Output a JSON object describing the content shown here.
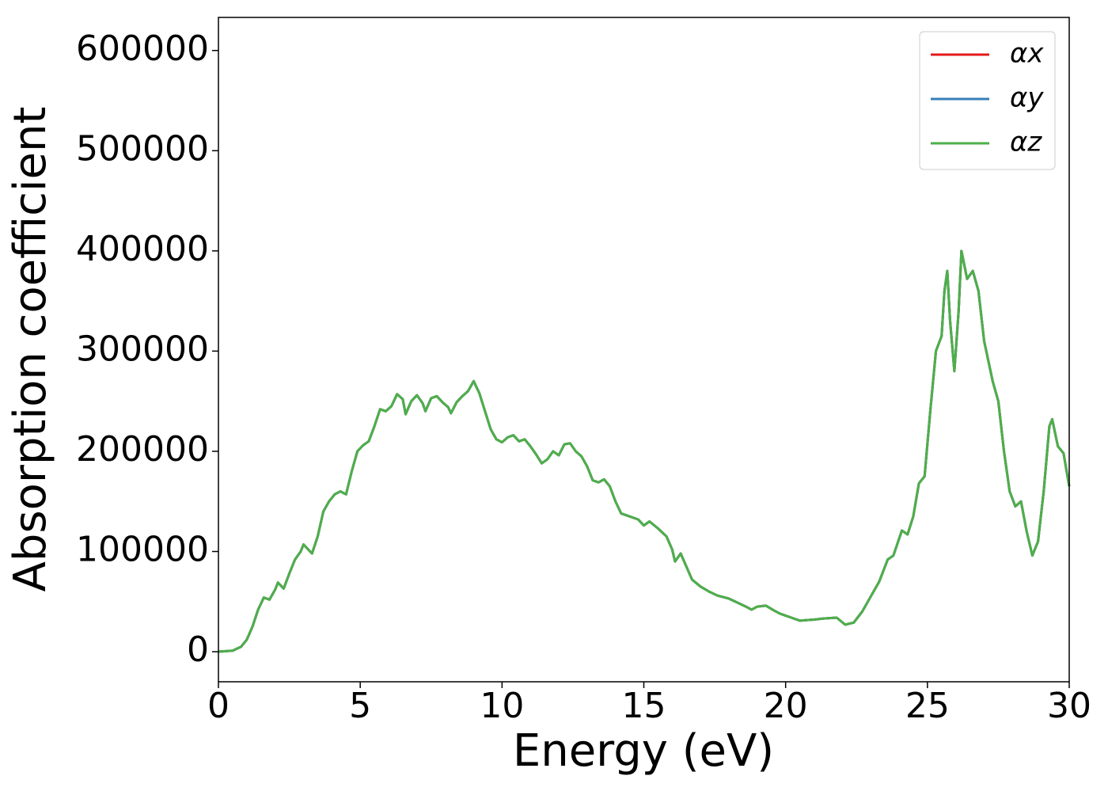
{
  "chart_data": {
    "type": "line",
    "xlabel": "Energy (eV)",
    "ylabel": "Absorption coefficient",
    "x": [
      0,
      0.5,
      0.8,
      1.0,
      1.2,
      1.4,
      1.6,
      1.8,
      2.0,
      2.1,
      2.3,
      2.5,
      2.7,
      2.9,
      3.0,
      3.1,
      3.3,
      3.5,
      3.7,
      3.9,
      4.1,
      4.3,
      4.5,
      4.7,
      4.9,
      5.1,
      5.3,
      5.5,
      5.7,
      5.9,
      6.1,
      6.3,
      6.5,
      6.6,
      6.8,
      7.0,
      7.2,
      7.3,
      7.5,
      7.7,
      7.9,
      8.1,
      8.2,
      8.4,
      8.6,
      8.8,
      9.0,
      9.2,
      9.4,
      9.6,
      9.8,
      10.0,
      10.2,
      10.4,
      10.6,
      10.8,
      11.0,
      11.2,
      11.4,
      11.6,
      11.8,
      12.0,
      12.2,
      12.4,
      12.6,
      12.8,
      13.0,
      13.2,
      13.4,
      13.6,
      13.8,
      14.0,
      14.2,
      14.5,
      14.8,
      15.0,
      15.2,
      15.5,
      15.8,
      16.0,
      16.1,
      16.3,
      16.5,
      16.7,
      17.0,
      17.3,
      17.6,
      18.0,
      18.3,
      18.6,
      18.8,
      19.0,
      19.3,
      19.6,
      19.8,
      20.2,
      20.5,
      21.0,
      21.3,
      21.8,
      22.1,
      22.4,
      22.7,
      23.0,
      23.3,
      23.6,
      23.8,
      24.1,
      24.3,
      24.5,
      24.7,
      24.9,
      25.1,
      25.3,
      25.5,
      25.6,
      25.7,
      25.8,
      25.95,
      26.1,
      26.2,
      26.4,
      26.6,
      26.8,
      27.0,
      27.3,
      27.5,
      27.7,
      27.9,
      28.1,
      28.3,
      28.5,
      28.7,
      28.9,
      29.1,
      29.3,
      29.4,
      29.6,
      29.8,
      30.0
    ],
    "series": [
      {
        "name": "αx",
        "color": "#e41a1c",
        "values": [
          0,
          1000,
          5000,
          12000,
          25000,
          42000,
          54000,
          52000,
          62000,
          69000,
          63000,
          78000,
          92000,
          100000,
          107000,
          104000,
          98000,
          115000,
          140000,
          150000,
          157000,
          160000,
          157000,
          180000,
          200000,
          206000,
          210000,
          225000,
          242000,
          240000,
          245000,
          257000,
          252000,
          237000,
          250000,
          256000,
          248000,
          240000,
          253000,
          255000,
          249000,
          244000,
          238000,
          249000,
          255000,
          260000,
          270000,
          258000,
          240000,
          222000,
          212000,
          209000,
          214000,
          216000,
          210000,
          212000,
          205000,
          197000,
          188000,
          192000,
          200000,
          196000,
          207000,
          208000,
          200000,
          195000,
          185000,
          171000,
          169000,
          172000,
          165000,
          150000,
          138000,
          135000,
          132000,
          126000,
          130000,
          123000,
          115000,
          102000,
          90000,
          98000,
          85000,
          72000,
          65000,
          60000,
          56000,
          53000,
          49000,
          45000,
          42000,
          45000,
          46000,
          41000,
          38000,
          34000,
          31000,
          32000,
          33000,
          34000,
          27000,
          29000,
          40000,
          55000,
          70000,
          92000,
          96000,
          121000,
          117000,
          135000,
          168000,
          175000,
          240000,
          300000,
          315000,
          360000,
          380000,
          330000,
          280000,
          340000,
          400000,
          372000,
          380000,
          360000,
          310000,
          270000,
          250000,
          200000,
          160000,
          145000,
          150000,
          120000,
          96000,
          110000,
          160000,
          225000,
          232000,
          205000,
          198000,
          165000
        ]
      },
      {
        "name": "αy",
        "color": "#377eb8",
        "values": [
          0,
          1000,
          5000,
          12000,
          25000,
          42000,
          54000,
          52000,
          62000,
          69000,
          63000,
          78000,
          92000,
          100000,
          107000,
          104000,
          98000,
          115000,
          140000,
          150000,
          157000,
          160000,
          157000,
          180000,
          200000,
          206000,
          210000,
          225000,
          242000,
          240000,
          245000,
          257000,
          252000,
          237000,
          250000,
          256000,
          248000,
          240000,
          253000,
          255000,
          249000,
          244000,
          238000,
          249000,
          255000,
          260000,
          270000,
          258000,
          240000,
          222000,
          212000,
          209000,
          214000,
          216000,
          210000,
          212000,
          205000,
          197000,
          188000,
          192000,
          200000,
          196000,
          207000,
          208000,
          200000,
          195000,
          185000,
          171000,
          169000,
          172000,
          165000,
          150000,
          138000,
          135000,
          132000,
          126000,
          130000,
          123000,
          115000,
          102000,
          90000,
          98000,
          85000,
          72000,
          65000,
          60000,
          56000,
          53000,
          49000,
          45000,
          42000,
          45000,
          46000,
          41000,
          38000,
          34000,
          31000,
          32000,
          33000,
          34000,
          27000,
          29000,
          40000,
          55000,
          70000,
          92000,
          96000,
          121000,
          117000,
          135000,
          168000,
          175000,
          240000,
          300000,
          315000,
          360000,
          380000,
          330000,
          280000,
          340000,
          400000,
          372000,
          380000,
          360000,
          310000,
          270000,
          250000,
          200000,
          160000,
          145000,
          150000,
          120000,
          96000,
          110000,
          160000,
          225000,
          232000,
          205000,
          198000,
          165000
        ]
      },
      {
        "name": "αz",
        "color": "#4daf4a",
        "values": [
          0,
          1000,
          5000,
          12000,
          25000,
          42000,
          54000,
          52000,
          62000,
          69000,
          63000,
          78000,
          92000,
          100000,
          107000,
          104000,
          98000,
          115000,
          140000,
          150000,
          157000,
          160000,
          157000,
          180000,
          200000,
          206000,
          210000,
          225000,
          242000,
          240000,
          245000,
          257000,
          252000,
          237000,
          250000,
          256000,
          248000,
          240000,
          253000,
          255000,
          249000,
          244000,
          238000,
          249000,
          255000,
          260000,
          270000,
          258000,
          240000,
          222000,
          212000,
          209000,
          214000,
          216000,
          210000,
          212000,
          205000,
          197000,
          188000,
          192000,
          200000,
          196000,
          207000,
          208000,
          200000,
          195000,
          185000,
          171000,
          169000,
          172000,
          165000,
          150000,
          138000,
          135000,
          132000,
          126000,
          130000,
          123000,
          115000,
          102000,
          90000,
          98000,
          85000,
          72000,
          65000,
          60000,
          56000,
          53000,
          49000,
          45000,
          42000,
          45000,
          46000,
          41000,
          38000,
          34000,
          31000,
          32000,
          33000,
          34000,
          27000,
          29000,
          40000,
          55000,
          70000,
          92000,
          96000,
          121000,
          117000,
          135000,
          168000,
          175000,
          240000,
          300000,
          315000,
          360000,
          380000,
          330000,
          280000,
          340000,
          400000,
          372000,
          380000,
          360000,
          310000,
          270000,
          250000,
          200000,
          160000,
          145000,
          150000,
          120000,
          96000,
          110000,
          160000,
          225000,
          232000,
          205000,
          198000,
          165000
        ]
      }
    ],
    "xlim": [
      0,
      30
    ],
    "xticks": [
      0,
      5,
      10,
      15,
      20,
      25,
      30
    ],
    "ylim": [
      -30000,
      633000
    ],
    "yticks": [
      0,
      100000,
      200000,
      300000,
      400000,
      500000,
      600000
    ],
    "grid": false,
    "legend": "upper right"
  }
}
